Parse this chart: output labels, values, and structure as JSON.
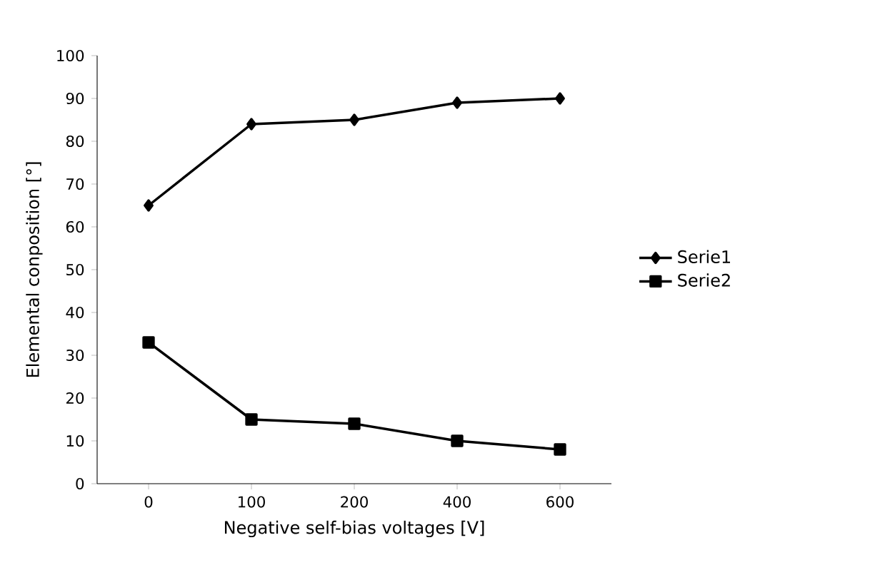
{
  "chart_data": {
    "type": "line",
    "xlabel": "Negative self-bias voltages [V]",
    "ylabel": "Elemental conposition [°]",
    "categories": [
      "0",
      "100",
      "200",
      "400",
      "600"
    ],
    "series": [
      {
        "name": "Serie1",
        "color": "#000000",
        "marker": "diamond",
        "values": [
          65,
          84,
          85,
          89,
          90
        ]
      },
      {
        "name": "Serie2",
        "color": "#000000",
        "marker": "square",
        "values": [
          33,
          15,
          14,
          10,
          8
        ]
      }
    ],
    "ylim": [
      0,
      100
    ],
    "yticks": [
      0,
      10,
      20,
      30,
      40,
      50,
      60,
      70,
      80,
      90,
      100
    ],
    "grid": false,
    "legend": "right",
    "line_style": "solid"
  }
}
